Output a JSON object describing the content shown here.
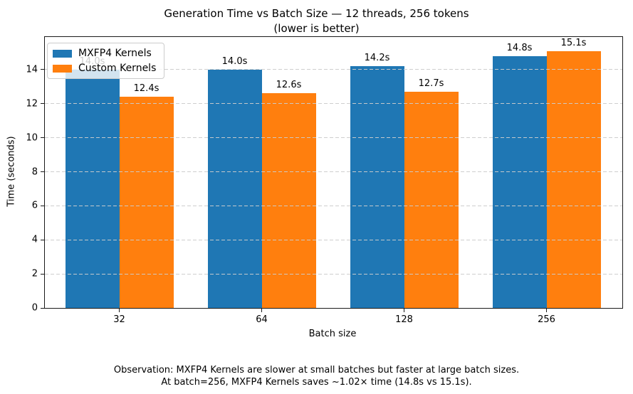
{
  "title": {
    "line1": "Generation Time vs Batch Size — 12 threads, 256 tokens",
    "line2": "(lower is better)"
  },
  "chart_data": {
    "type": "bar",
    "categories": [
      "32",
      "64",
      "128",
      "256"
    ],
    "series": [
      {
        "name": "MXFP4 Kernels",
        "color": "#1f77b4",
        "values": [
          14.0,
          14.0,
          14.2,
          14.8
        ],
        "labels": [
          "14.0s",
          "14.0s",
          "14.2s",
          "14.8s"
        ]
      },
      {
        "name": "Custom Kernels",
        "color": "#ff7f0e",
        "values": [
          12.4,
          12.6,
          12.7,
          15.1
        ],
        "labels": [
          "12.4s",
          "12.6s",
          "12.7s",
          "15.1s"
        ]
      }
    ],
    "xlabel": "Batch size",
    "ylabel": "Time (seconds)",
    "ylim": [
      0,
      15.92
    ],
    "yticks": [
      0,
      2,
      4,
      6,
      8,
      10,
      12,
      14
    ],
    "grid": "horizontal dashed, drawn above bars",
    "grid_color": "#cccccc",
    "legend_position": "upper left"
  },
  "footnote": {
    "line1": "Observation: MXFP4 Kernels are slower at small batches but faster at large batch sizes.",
    "line2": "At batch=256, MXFP4 Kernels saves ~1.02× time (14.8s vs 15.1s)."
  }
}
